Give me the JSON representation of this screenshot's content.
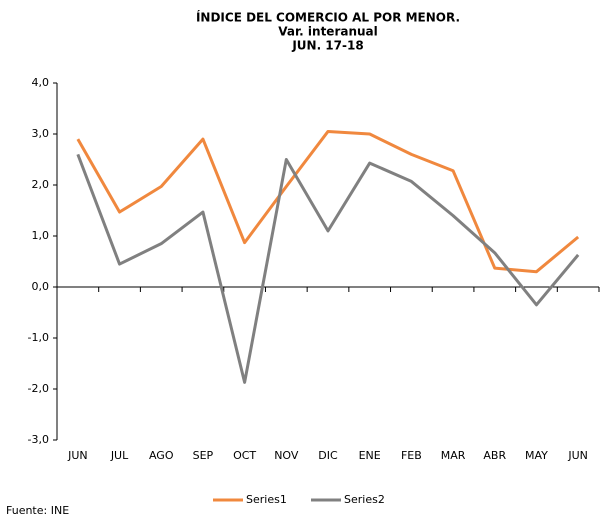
{
  "chart_data": {
    "type": "line",
    "title": "ÍNDICE DEL COMERCIO AL POR MENOR.",
    "subtitle": [
      "Var. interanual",
      "JUN. 17-18"
    ],
    "source": "Fuente: INE",
    "categories": [
      "JUN",
      "JUL",
      "AGO",
      "SEP",
      "OCT",
      "NOV",
      "DIC",
      "ENE",
      "FEB",
      "MAR",
      "ABR",
      "MAY",
      "JUN"
    ],
    "series": [
      {
        "name": "Series1",
        "color": "#f0883e",
        "values": [
          2.9,
          1.47,
          1.97,
          2.9,
          0.87,
          1.97,
          3.05,
          3.0,
          2.6,
          2.28,
          0.37,
          0.3,
          0.98
        ]
      },
      {
        "name": "Series2",
        "color": "#808080",
        "values": [
          2.6,
          0.45,
          0.85,
          1.47,
          -1.87,
          2.5,
          1.1,
          2.43,
          2.07,
          1.4,
          0.67,
          -0.35,
          0.63
        ]
      }
    ],
    "ylim": [
      -3,
      4
    ],
    "yticks": [
      {
        "value": -3,
        "label": "-3,0"
      },
      {
        "value": -2,
        "label": "-2,0"
      },
      {
        "value": -1,
        "label": "-1,0"
      },
      {
        "value": 0,
        "label": "0,0"
      },
      {
        "value": 1,
        "label": "1,0"
      },
      {
        "value": 2,
        "label": "2,0"
      },
      {
        "value": 3,
        "label": "3,0"
      },
      {
        "value": 4,
        "label": "4,0"
      }
    ],
    "grid": false
  }
}
